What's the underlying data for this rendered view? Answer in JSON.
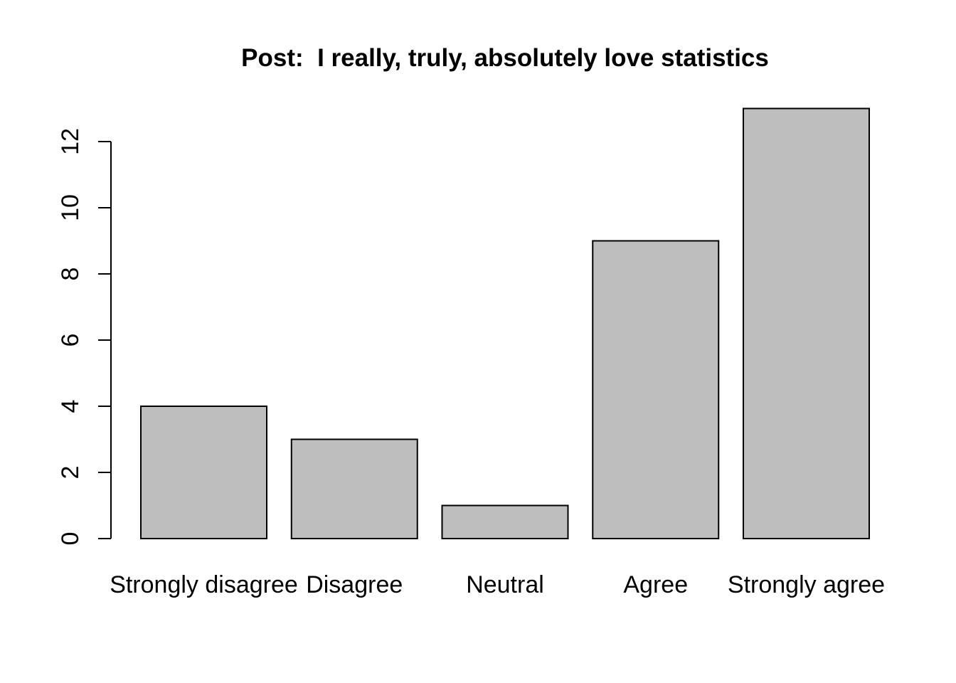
{
  "title": "Post:  I really, truly, absolutely love statistics",
  "colors": {
    "background": "#FFFFFF",
    "bar_fill": "#BEBEBE",
    "bar_border": "#000000",
    "axis": "#000000",
    "text": "#000000"
  },
  "chart_data": {
    "type": "bar",
    "title": "Post:  I really, truly, absolutely love statistics",
    "categories": [
      "Strongly disagree",
      "Disagree",
      "Neutral",
      "Agree",
      "Strongly agree"
    ],
    "values": [
      4,
      3,
      1,
      9,
      13
    ],
    "xlabel": "",
    "ylabel": "",
    "yticks": [
      0,
      2,
      4,
      6,
      8,
      10,
      12
    ],
    "ylim": [
      0,
      13
    ],
    "grid": false,
    "legend": false,
    "bar_fill": "#BEBEBE",
    "bar_border": "#000000",
    "y_tick_labels_rotated": true
  }
}
